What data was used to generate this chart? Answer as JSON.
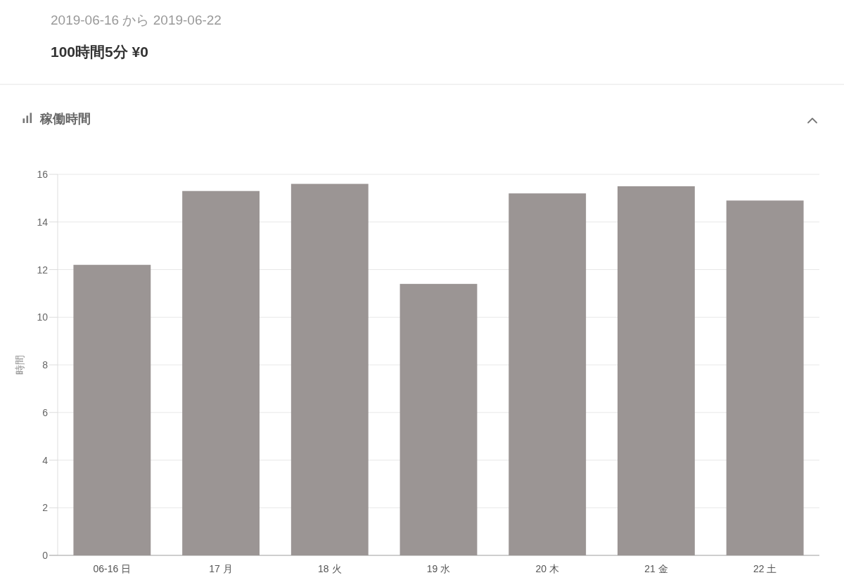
{
  "chart_data": {
    "type": "bar",
    "title": "稼働時間",
    "ylabel": "時間",
    "annotations": [
      "2019-06-16 から 2019-06-22",
      "100時間5分 ¥0"
    ],
    "categories": [
      "06-16 日",
      "17 月",
      "18 火",
      "19 水",
      "20 木",
      "21 金",
      "22 土"
    ],
    "values": [
      12.2,
      15.3,
      15.6,
      11.4,
      15.2,
      15.5,
      14.9
    ],
    "color": "#9b9594",
    "ylim": [
      0,
      16
    ],
    "yticks": [
      0,
      2,
      4,
      6,
      8,
      10,
      12,
      14,
      16
    ],
    "grid": "y"
  }
}
